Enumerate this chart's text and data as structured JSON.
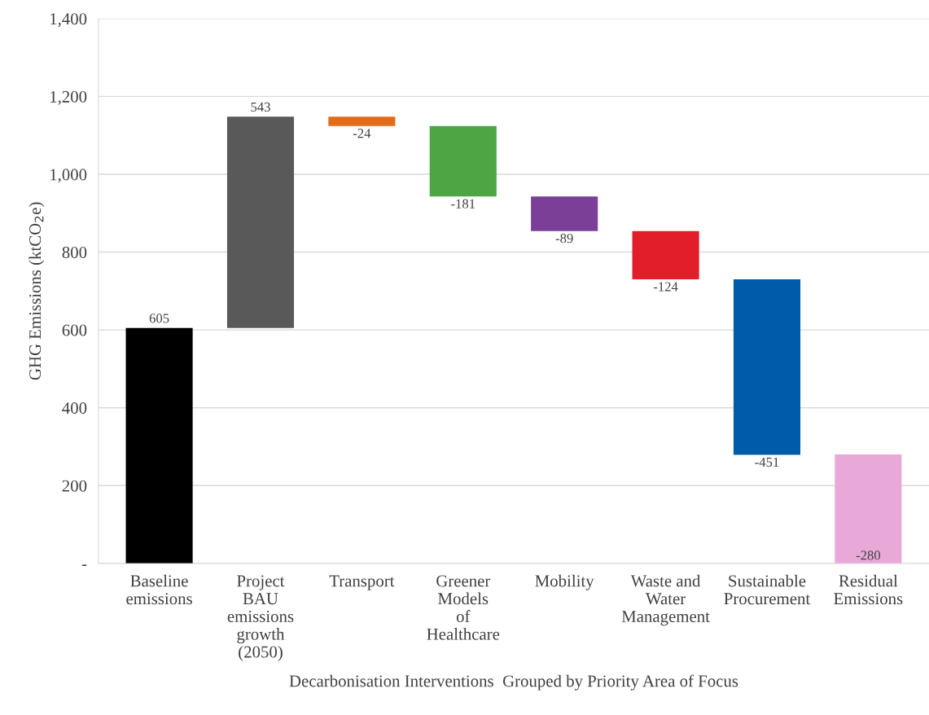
{
  "chart_data": {
    "type": "bar",
    "categories": [
      "Baseline\nemissions",
      "Project\nBAU\nemissions\ngrowth\n(2050)",
      "Transport",
      "Greener\nModels\nof\nHealthcare",
      "Mobility",
      "Waste and\nWater\nManagement",
      "Sustainable\nProcurement",
      "Residual\nEmissions"
    ],
    "values": [
      605,
      543,
      -24,
      -181,
      -89,
      -124,
      -451,
      -280
    ],
    "base": [
      0,
      605,
      1148,
      1124,
      943,
      854,
      730,
      280
    ],
    "colors": [
      "#000000",
      "#595959",
      "#e36c1c",
      "#4ea544",
      "#7b3f98",
      "#e31e2b",
      "#005baa",
      "#e8a9d8"
    ],
    "data_labels": true,
    "ylabel": "GHG Emissions (ktCO$_{2}$e)",
    "xlabel": "Decarbonisation Interventions  Grouped by Priority Area of Focus",
    "ylim": [
      0,
      1400
    ],
    "yticks": [
      {
        "value": 0,
        "label": "-"
      },
      {
        "value": 200,
        "label": "200"
      },
      {
        "value": 400,
        "label": "400"
      },
      {
        "value": 600,
        "label": "600"
      },
      {
        "value": 800,
        "label": "800"
      },
      {
        "value": 1000,
        "label": "1,000"
      },
      {
        "value": 1200,
        "label": "1,200"
      },
      {
        "value": 1400,
        "label": "1,400"
      }
    ],
    "grid": "y"
  }
}
